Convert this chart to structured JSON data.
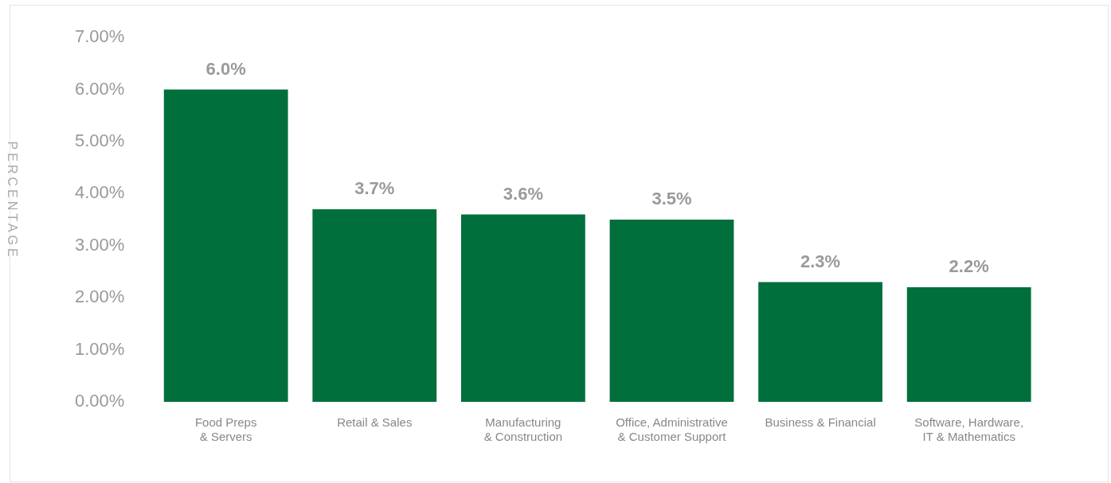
{
  "chart_data": {
    "type": "bar",
    "ylabel": "PERCENTAGE",
    "categories": [
      "Food Preps\n& Servers",
      "Retail & Sales",
      "Manufacturing\n& Construction",
      "Office, Administrative\n& Customer Support",
      "Business & Financial",
      "Software, Hardware,\nIT & Mathematics"
    ],
    "values": [
      6.0,
      3.7,
      3.6,
      3.5,
      2.3,
      2.2
    ],
    "value_labels": [
      "6.0%",
      "3.7%",
      "3.6%",
      "3.5%",
      "2.3%",
      "2.2%"
    ],
    "color": "#006f3c",
    "ylim": [
      0,
      7
    ],
    "yticks": [
      {
        "value": 0,
        "label": "0.00%"
      },
      {
        "value": 1,
        "label": "1.00%"
      },
      {
        "value": 2,
        "label": "2.00%"
      },
      {
        "value": 3,
        "label": "3.00%"
      },
      {
        "value": 4,
        "label": "4.00%"
      },
      {
        "value": 5,
        "label": "5.00%"
      },
      {
        "value": 6,
        "label": "6.00%"
      },
      {
        "value": 7,
        "label": "7.00%"
      }
    ],
    "grid": false,
    "legend": false
  }
}
